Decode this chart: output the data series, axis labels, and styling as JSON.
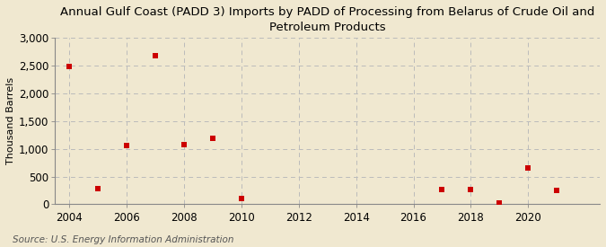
{
  "title": "Annual Gulf Coast (PADD 3) Imports by PADD of Processing from Belarus of Crude Oil and\nPetroleum Products",
  "ylabel": "Thousand Barrels",
  "source": "Source: U.S. Energy Information Administration",
  "background_color": "#f0e8d0",
  "plot_background_color": "#f0e8d0",
  "x_data": [
    2004,
    2005,
    2006,
    2007,
    2008,
    2009,
    2010,
    2017,
    2018,
    2019,
    2020,
    2021
  ],
  "y_data": [
    2480,
    290,
    1060,
    2680,
    1075,
    1185,
    105,
    270,
    265,
    18,
    650,
    255
  ],
  "xlim": [
    2003.5,
    2022.5
  ],
  "ylim": [
    0,
    3000
  ],
  "yticks": [
    0,
    500,
    1000,
    1500,
    2000,
    2500,
    3000
  ],
  "xticks": [
    2004,
    2006,
    2008,
    2010,
    2012,
    2014,
    2016,
    2018,
    2020
  ],
  "marker_color": "#cc0000",
  "marker_size": 4,
  "grid_color": "#bbbbbb",
  "title_fontsize": 9.5,
  "axis_fontsize": 8.5,
  "source_fontsize": 7.5,
  "ylabel_fontsize": 8
}
